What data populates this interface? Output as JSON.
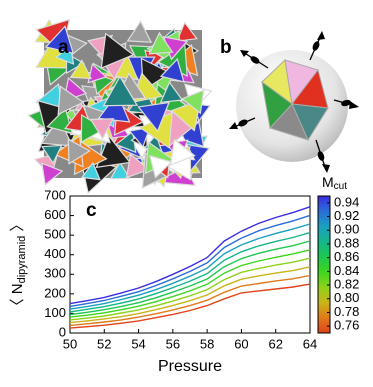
{
  "panels": [
    "a",
    "b"
  ],
  "chart_data": {
    "type": "line",
    "panel_label": "c",
    "xlabel": "Pressure",
    "ylabel_parts": [
      "〈 N",
      "dipyramid",
      " 〉"
    ],
    "x": [
      50,
      51,
      52,
      53,
      54,
      55,
      56,
      57,
      58,
      59,
      60,
      61,
      62,
      63,
      64
    ],
    "xlim": [
      50,
      64
    ],
    "xticks": [
      50,
      52,
      54,
      56,
      58,
      60,
      62,
      64
    ],
    "ylim": [
      0,
      700
    ],
    "yticks": [
      0,
      100,
      200,
      300,
      400,
      500,
      600,
      700
    ],
    "series": [
      {
        "color": "#3b2de0",
        "values": [
          150,
          165,
          182,
          205,
          230,
          262,
          300,
          340,
          385,
          470,
          520,
          560,
          590,
          615,
          645
        ]
      },
      {
        "color": "#2a6ed8",
        "values": [
          136,
          150,
          166,
          188,
          211,
          242,
          277,
          315,
          358,
          437,
          485,
          522,
          549,
          573,
          601
        ]
      },
      {
        "color": "#1aa0c0",
        "values": [
          122,
          135,
          150,
          171,
          193,
          221,
          254,
          290,
          331,
          405,
          450,
          483,
          509,
          531,
          557
        ]
      },
      {
        "color": "#16b58a",
        "values": [
          108,
          121,
          135,
          153,
          174,
          201,
          232,
          265,
          303,
          372,
          415,
          445,
          468,
          488,
          513
        ]
      },
      {
        "color": "#1ec850",
        "values": [
          94,
          106,
          119,
          136,
          155,
          180,
          209,
          240,
          276,
          339,
          380,
          407,
          428,
          446,
          470
        ]
      },
      {
        "color": "#3ed61e",
        "values": [
          81,
          91,
          103,
          119,
          137,
          160,
          186,
          215,
          249,
          306,
          345,
          368,
          387,
          404,
          425
        ]
      },
      {
        "color": "#8ed21a",
        "values": [
          67,
          76,
          87,
          102,
          118,
          139,
          163,
          190,
          222,
          273,
          310,
          330,
          347,
          362,
          382
        ]
      },
      {
        "color": "#c9b41a",
        "values": [
          53,
          62,
          72,
          84,
          99,
          119,
          141,
          165,
          194,
          241,
          275,
          292,
          306,
          319,
          338
        ]
      },
      {
        "color": "#e07a1a",
        "values": [
          39,
          47,
          56,
          67,
          81,
          98,
          118,
          140,
          167,
          208,
          240,
          253,
          266,
          277,
          294
        ]
      },
      {
        "color": "#e0421a",
        "values": [
          25,
          32,
          40,
          50,
          62,
          78,
          95,
          115,
          140,
          175,
          205,
          215,
          225,
          235,
          250
        ]
      }
    ],
    "colorbar": {
      "label_parts": [
        "M",
        "cut"
      ],
      "clim": [
        0.75,
        0.95
      ],
      "ticks": [
        0.76,
        0.78,
        {
          "value": 0.8,
          "label": "0.80"
        },
        0.82,
        0.84,
        0.86,
        0.88,
        {
          "value": 0.9,
          "label": "0.90"
        },
        0.92,
        0.94
      ]
    }
  }
}
